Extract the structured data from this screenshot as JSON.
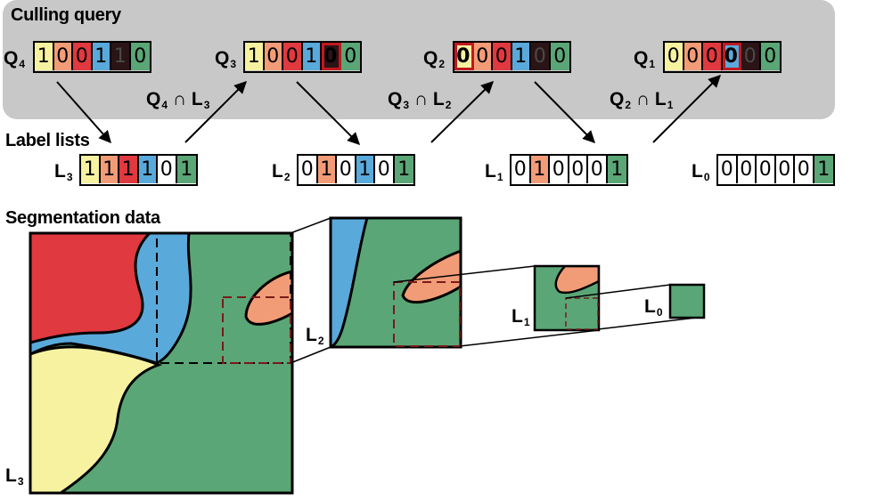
{
  "headings": {
    "culling_query": "Culling query",
    "label_lists": "Label lists",
    "segmentation_data": "Segmentation data"
  },
  "colors": {
    "yellow": "#f7f2a0",
    "salmon": "#f29c77",
    "red": "#e0393f",
    "blue": "#5aa9db",
    "dark": "#2b1416",
    "green": "#5aa676",
    "white": "#ffffff",
    "panel": "#c8c8c8",
    "highlight": "#c0191f"
  },
  "queries": [
    {
      "name": "Q",
      "sub": "4",
      "bits": [
        "1",
        "0",
        "0",
        "1",
        "1",
        "0"
      ],
      "colors": [
        "yellow",
        "salmon",
        "red",
        "blue",
        "dark",
        "green"
      ],
      "highlight": -1
    },
    {
      "name": "Q",
      "sub": "3",
      "bits": [
        "1",
        "0",
        "0",
        "1",
        "0",
        "0"
      ],
      "colors": [
        "yellow",
        "salmon",
        "red",
        "blue",
        "dark",
        "green"
      ],
      "highlight": 4
    },
    {
      "name": "Q",
      "sub": "2",
      "bits": [
        "0",
        "0",
        "0",
        "1",
        "0",
        "0"
      ],
      "colors": [
        "yellow",
        "salmon",
        "red",
        "blue",
        "dark",
        "green"
      ],
      "highlight": 0
    },
    {
      "name": "Q",
      "sub": "1",
      "bits": [
        "0",
        "0",
        "0",
        "0",
        "0",
        "0"
      ],
      "colors": [
        "yellow",
        "salmon",
        "red",
        "blue",
        "dark",
        "green"
      ],
      "highlight": 3
    }
  ],
  "intersections": [
    {
      "q": "Q",
      "qsub": "4",
      "op": "∩",
      "l": "L",
      "lsub": "3"
    },
    {
      "q": "Q",
      "qsub": "3",
      "op": "∩",
      "l": "L",
      "lsub": "2"
    },
    {
      "q": "Q",
      "qsub": "2",
      "op": "∩",
      "l": "L",
      "lsub": "1"
    }
  ],
  "label_lists": [
    {
      "name": "L",
      "sub": "3",
      "bits": [
        "1",
        "1",
        "1",
        "1",
        "0",
        "1"
      ],
      "colors": [
        "yellow",
        "salmon",
        "red",
        "blue",
        "white",
        "green"
      ]
    },
    {
      "name": "L",
      "sub": "2",
      "bits": [
        "0",
        "1",
        "0",
        "1",
        "0",
        "1"
      ],
      "colors": [
        "white",
        "salmon",
        "white",
        "blue",
        "white",
        "green"
      ]
    },
    {
      "name": "L",
      "sub": "1",
      "bits": [
        "0",
        "1",
        "0",
        "0",
        "0",
        "1"
      ],
      "colors": [
        "white",
        "salmon",
        "white",
        "white",
        "white",
        "green"
      ]
    },
    {
      "name": "L",
      "sub": "0",
      "bits": [
        "0",
        "0",
        "0",
        "0",
        "0",
        "1"
      ],
      "colors": [
        "white",
        "white",
        "white",
        "white",
        "white",
        "green"
      ]
    }
  ],
  "levels": [
    {
      "name": "L",
      "sub": "3"
    },
    {
      "name": "L",
      "sub": "2"
    },
    {
      "name": "L",
      "sub": "1"
    },
    {
      "name": "L",
      "sub": "0"
    }
  ]
}
